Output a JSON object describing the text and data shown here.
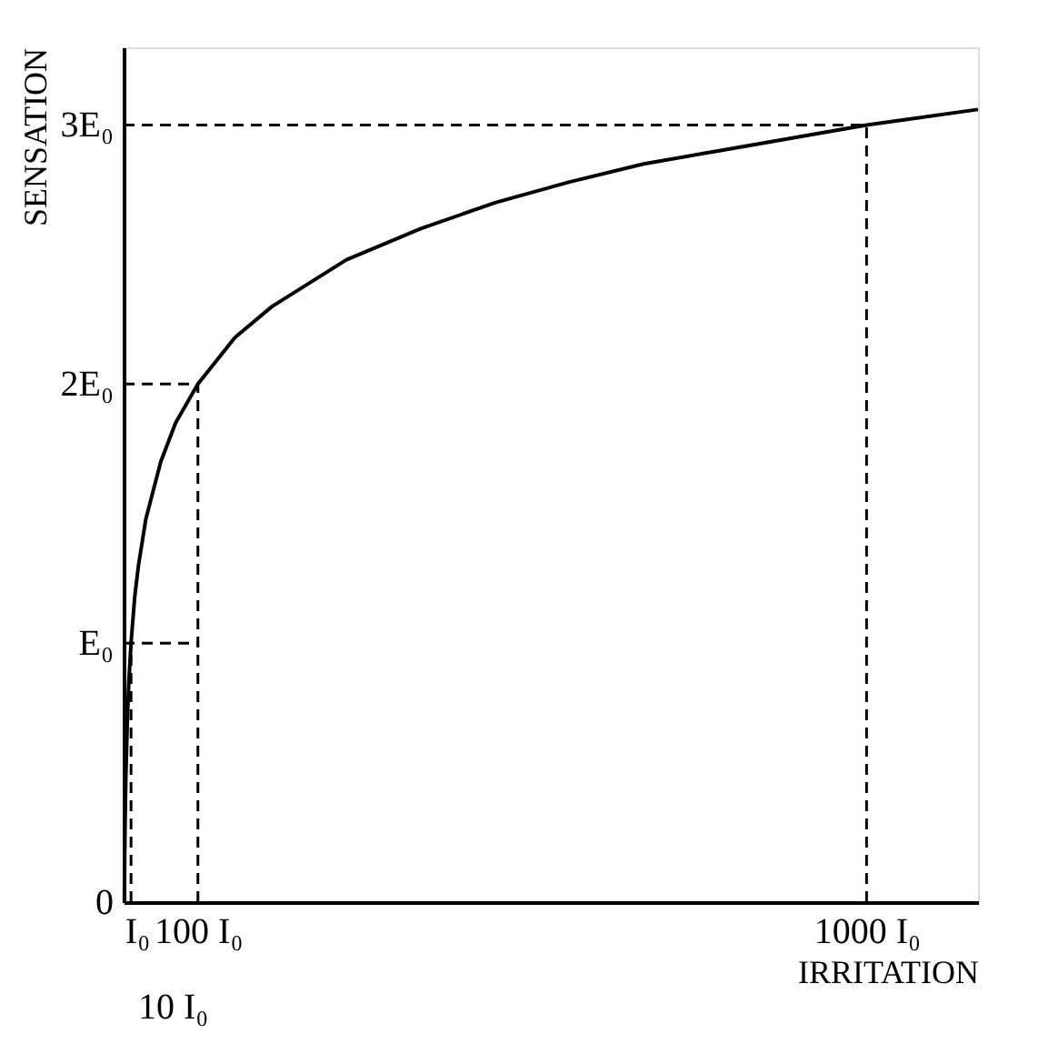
{
  "chart_data": {
    "type": "line",
    "xlabel": "IRRITATION",
    "ylabel": "SENSATION",
    "xlim": [
      0,
      1150
    ],
    "ylim": [
      0,
      3.3
    ],
    "xticks": [
      {
        "value": 1,
        "label": "I₀"
      },
      {
        "value": 100,
        "label": "100 I₀"
      },
      {
        "value": 1000,
        "label": "1000 I₀"
      }
    ],
    "yticks": [
      0,
      {
        "value": 1,
        "label": "E₀"
      },
      {
        "value": 2,
        "label": "2E₀"
      },
      {
        "value": 3,
        "label": "3E₀"
      }
    ],
    "series": [
      {
        "color": "#000000",
        "x": [
          1,
          1.5,
          2,
          3,
          5,
          7,
          10,
          15,
          20,
          30,
          50,
          70,
          100,
          150,
          200,
          300,
          400,
          500,
          600,
          700,
          800,
          900,
          1000,
          1150
        ],
        "values": [
          0,
          0.18,
          0.3,
          0.48,
          0.7,
          0.85,
          1,
          1.18,
          1.3,
          1.48,
          1.7,
          1.85,
          2,
          2.18,
          2.3,
          2.48,
          2.6,
          2.7,
          2.78,
          2.85,
          2.9,
          2.95,
          3,
          3.06
        ]
      }
    ],
    "ref_lines": [
      {
        "axis": "x",
        "value": 10,
        "color": "#000000",
        "line_style": "dashed"
      },
      {
        "axis": "x",
        "value": 100,
        "color": "#000000",
        "line_style": "dashed"
      },
      {
        "axis": "x",
        "value": 1000,
        "color": "#000000",
        "line_style": "dashed"
      },
      {
        "axis": "y",
        "value": 1,
        "color": "#000000",
        "line_style": "dashed"
      },
      {
        "axis": "y",
        "value": 2,
        "color": "#000000",
        "line_style": "dashed"
      },
      {
        "axis": "y",
        "value": 3,
        "color": "#000000",
        "line_style": "dashed"
      }
    ],
    "annotations": [
      "10 I₀"
    ],
    "grid": false,
    "marker": "none",
    "line_style": "solid"
  }
}
